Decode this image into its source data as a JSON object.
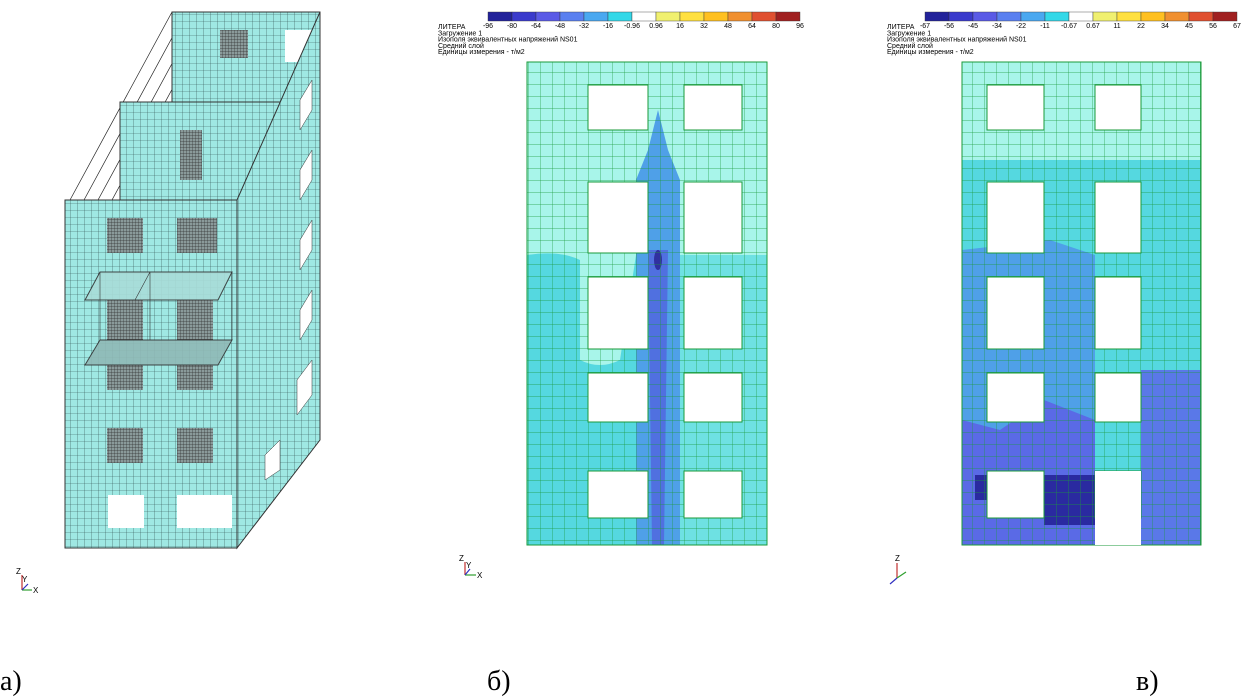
{
  "panels": [
    {
      "caption": "а)",
      "axes": {
        "z": "Z",
        "y": "Y",
        "x": "X"
      }
    },
    {
      "caption": "б)",
      "header": [
        "ЛИТЕРА",
        "Загружение  1",
        "Изополя эквивалентных напряжений NS01",
        "Средний слой",
        "Единицы измерения - т/м2"
      ],
      "scale": [
        "-96",
        "-80",
        "-64",
        "-48",
        "-32",
        "-16",
        "-0.96",
        "0.96",
        "16",
        "32",
        "48",
        "64",
        "80",
        "96"
      ],
      "axes": {
        "z": "Z",
        "y": "Y",
        "x": "X"
      }
    },
    {
      "caption": "в)",
      "header": [
        "ЛИТЕРА",
        "Загружение  1",
        "Изополя эквивалентных напряжений NS01",
        "Средний слой",
        "Единицы измерения - т/м2"
      ],
      "scale": [
        "-67",
        "-56",
        "-45",
        "-34",
        "-22",
        "-11",
        "-0.67",
        "0.67",
        "11",
        "22",
        "34",
        "45",
        "56",
        "67"
      ],
      "axes": {
        "z": "Z"
      }
    }
  ]
}
